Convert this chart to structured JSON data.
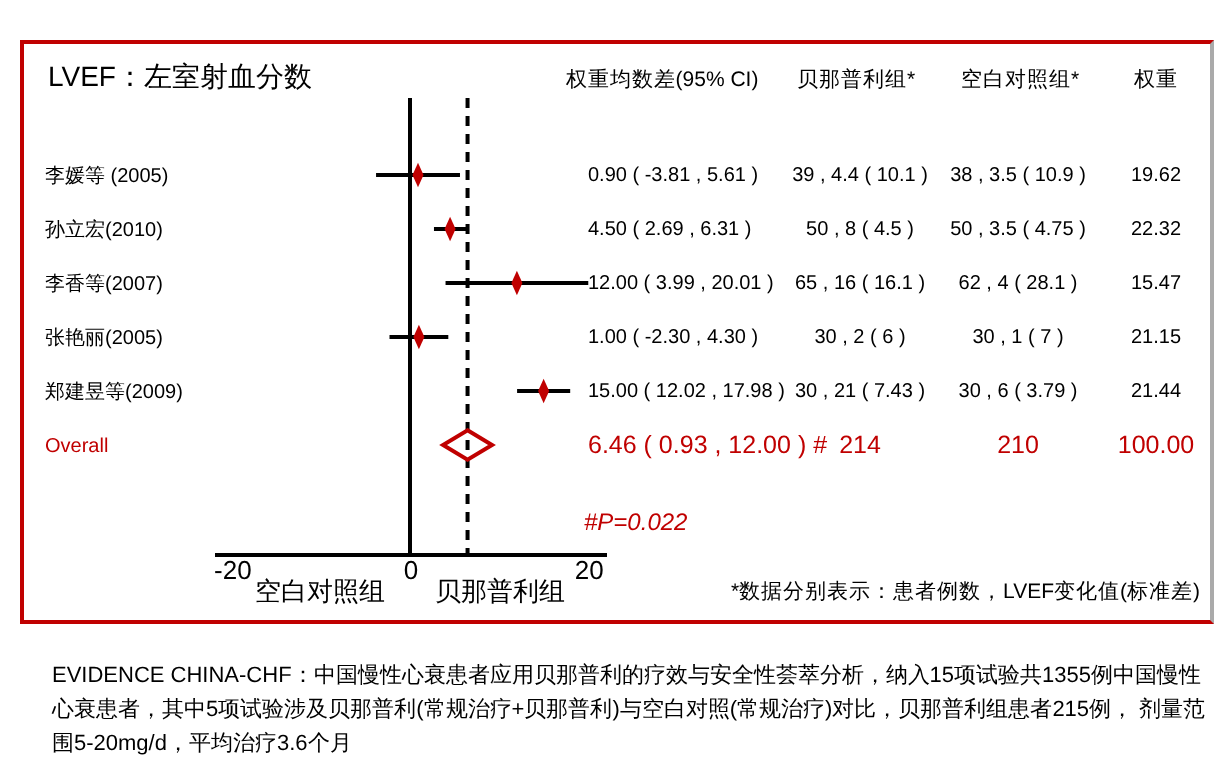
{
  "chart_data": {
    "type": "scatter",
    "orientation": "horizontal",
    "title": "LVEF：左室射血分数",
    "categories": [
      "李媛等 (2005)",
      "孙立宏(2010)",
      "李香等(2007)",
      "张艳丽(2005)",
      "郑建昱等(2009)",
      "Overall"
    ],
    "series": [
      {
        "color": "#c00000",
        "values": [
          0.9,
          4.5,
          12.0,
          1.0,
          15.0,
          null
        ],
        "errors": [
          [
            -3.81,
            5.61
          ],
          [
            2.69,
            6.31
          ],
          [
            3.99,
            20.01
          ],
          [
            -2.3,
            4.3
          ],
          [
            12.02,
            17.98
          ],
          null
        ]
      },
      {
        "color": "#c00000",
        "values": [
          null,
          null,
          null,
          null,
          null,
          6.46
        ]
      }
    ],
    "marker": "diamond",
    "xlim": [
      -22,
      22
    ],
    "xticks": [
      -20,
      0,
      20
    ],
    "ref_lines": [
      {
        "axis": "x",
        "value": 0,
        "color": "#000000",
        "line_style": "solid"
      },
      {
        "axis": "x",
        "value": 6.46,
        "color": "#000000",
        "line_style": "dashed"
      }
    ],
    "annotations": [
      "权重均数差(95% CI)",
      "贝那普利组*",
      "空白对照组*",
      "权重",
      "0.90 ( -3.81 , 5.61 )",
      "39 , 4.4 ( 10.1 )",
      "38 , 3.5 ( 10.9 )",
      "19.62",
      "4.50 ( 2.69 , 6.31 )",
      "50 , 8 ( 4.5 )",
      "50 , 3.5 ( 4.75 )",
      "22.32",
      "12.00 ( 3.99 , 20.01 )",
      "65 , 16 ( 16.1 )",
      "62 , 4 ( 28.1 )",
      "15.47",
      "1.00 ( -2.30 , 4.30 )",
      "30 , 2 ( 6 )",
      "30 , 1 ( 7 )",
      "21.15",
      "15.00 ( 12.02 , 17.98 )",
      "30 , 21 ( 7.43 )",
      "30 , 6 ( 3.79 )",
      "21.44",
      "6.46 ( 0.93 , 12.00 ) #",
      "214",
      "210",
      "100.00",
      "#P=0.022",
      "*数据分别表示：患者例数，LVEF变化值(标准差)",
      "空白对照组",
      "贝那普利组",
      "EVIDENCE CHINA-CHF：中国慢性心衰患者应用贝那普利的疗效与安全性荟萃分析，纳入15项试验共1355例中国慢性心衰患者，其中5项试验涉及贝那普利(常规治疗+贝那普利)与空白对照(常规治疗)对比，贝那普利组患者215例， 剂量范围5-20mg/d，平均治疗3.6个月"
    ]
  }
}
